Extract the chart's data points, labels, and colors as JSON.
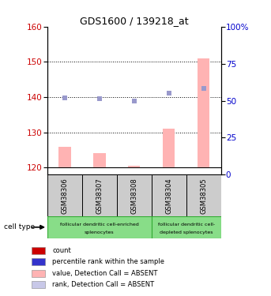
{
  "title": "GDS1600 / 139218_at",
  "samples": [
    "GSM38306",
    "GSM38307",
    "GSM38308",
    "GSM38304",
    "GSM38305"
  ],
  "ylim_left": [
    118,
    160
  ],
  "ylim_right": [
    0,
    100
  ],
  "yticks_left": [
    120,
    130,
    140,
    150,
    160
  ],
  "yticks_right": [
    0,
    25,
    50,
    75,
    100
  ],
  "bar_values": [
    126,
    124,
    120.5,
    131,
    151
  ],
  "bar_base": 120,
  "dot_values": [
    139.8,
    139.6,
    138.8,
    141.2,
    142.5
  ],
  "bar_color": "#ffb3b3",
  "dot_color": "#9999cc",
  "dot_size": 18,
  "grid_color": "black",
  "tick_label_color_left": "#cc0000",
  "tick_label_color_right": "#0000cc",
  "sample_box_color": "#cccccc",
  "cell_type_1_label_line1": "follicular dendritic cell-enriched",
  "cell_type_1_label_line2": "splenocytes",
  "cell_type_2_label_line1": "follicular dendritic cell-",
  "cell_type_2_label_line2": "depleted splenocytes",
  "cell_type_color": "#88dd88",
  "cell_type_border": "#33aa33",
  "legend_labels": [
    "count",
    "percentile rank within the sample",
    "value, Detection Call = ABSENT",
    "rank, Detection Call = ABSENT"
  ],
  "legend_colors": [
    "#cc0000",
    "#3333cc",
    "#ffb3b3",
    "#c8c8e8"
  ],
  "bar_width": 0.35
}
